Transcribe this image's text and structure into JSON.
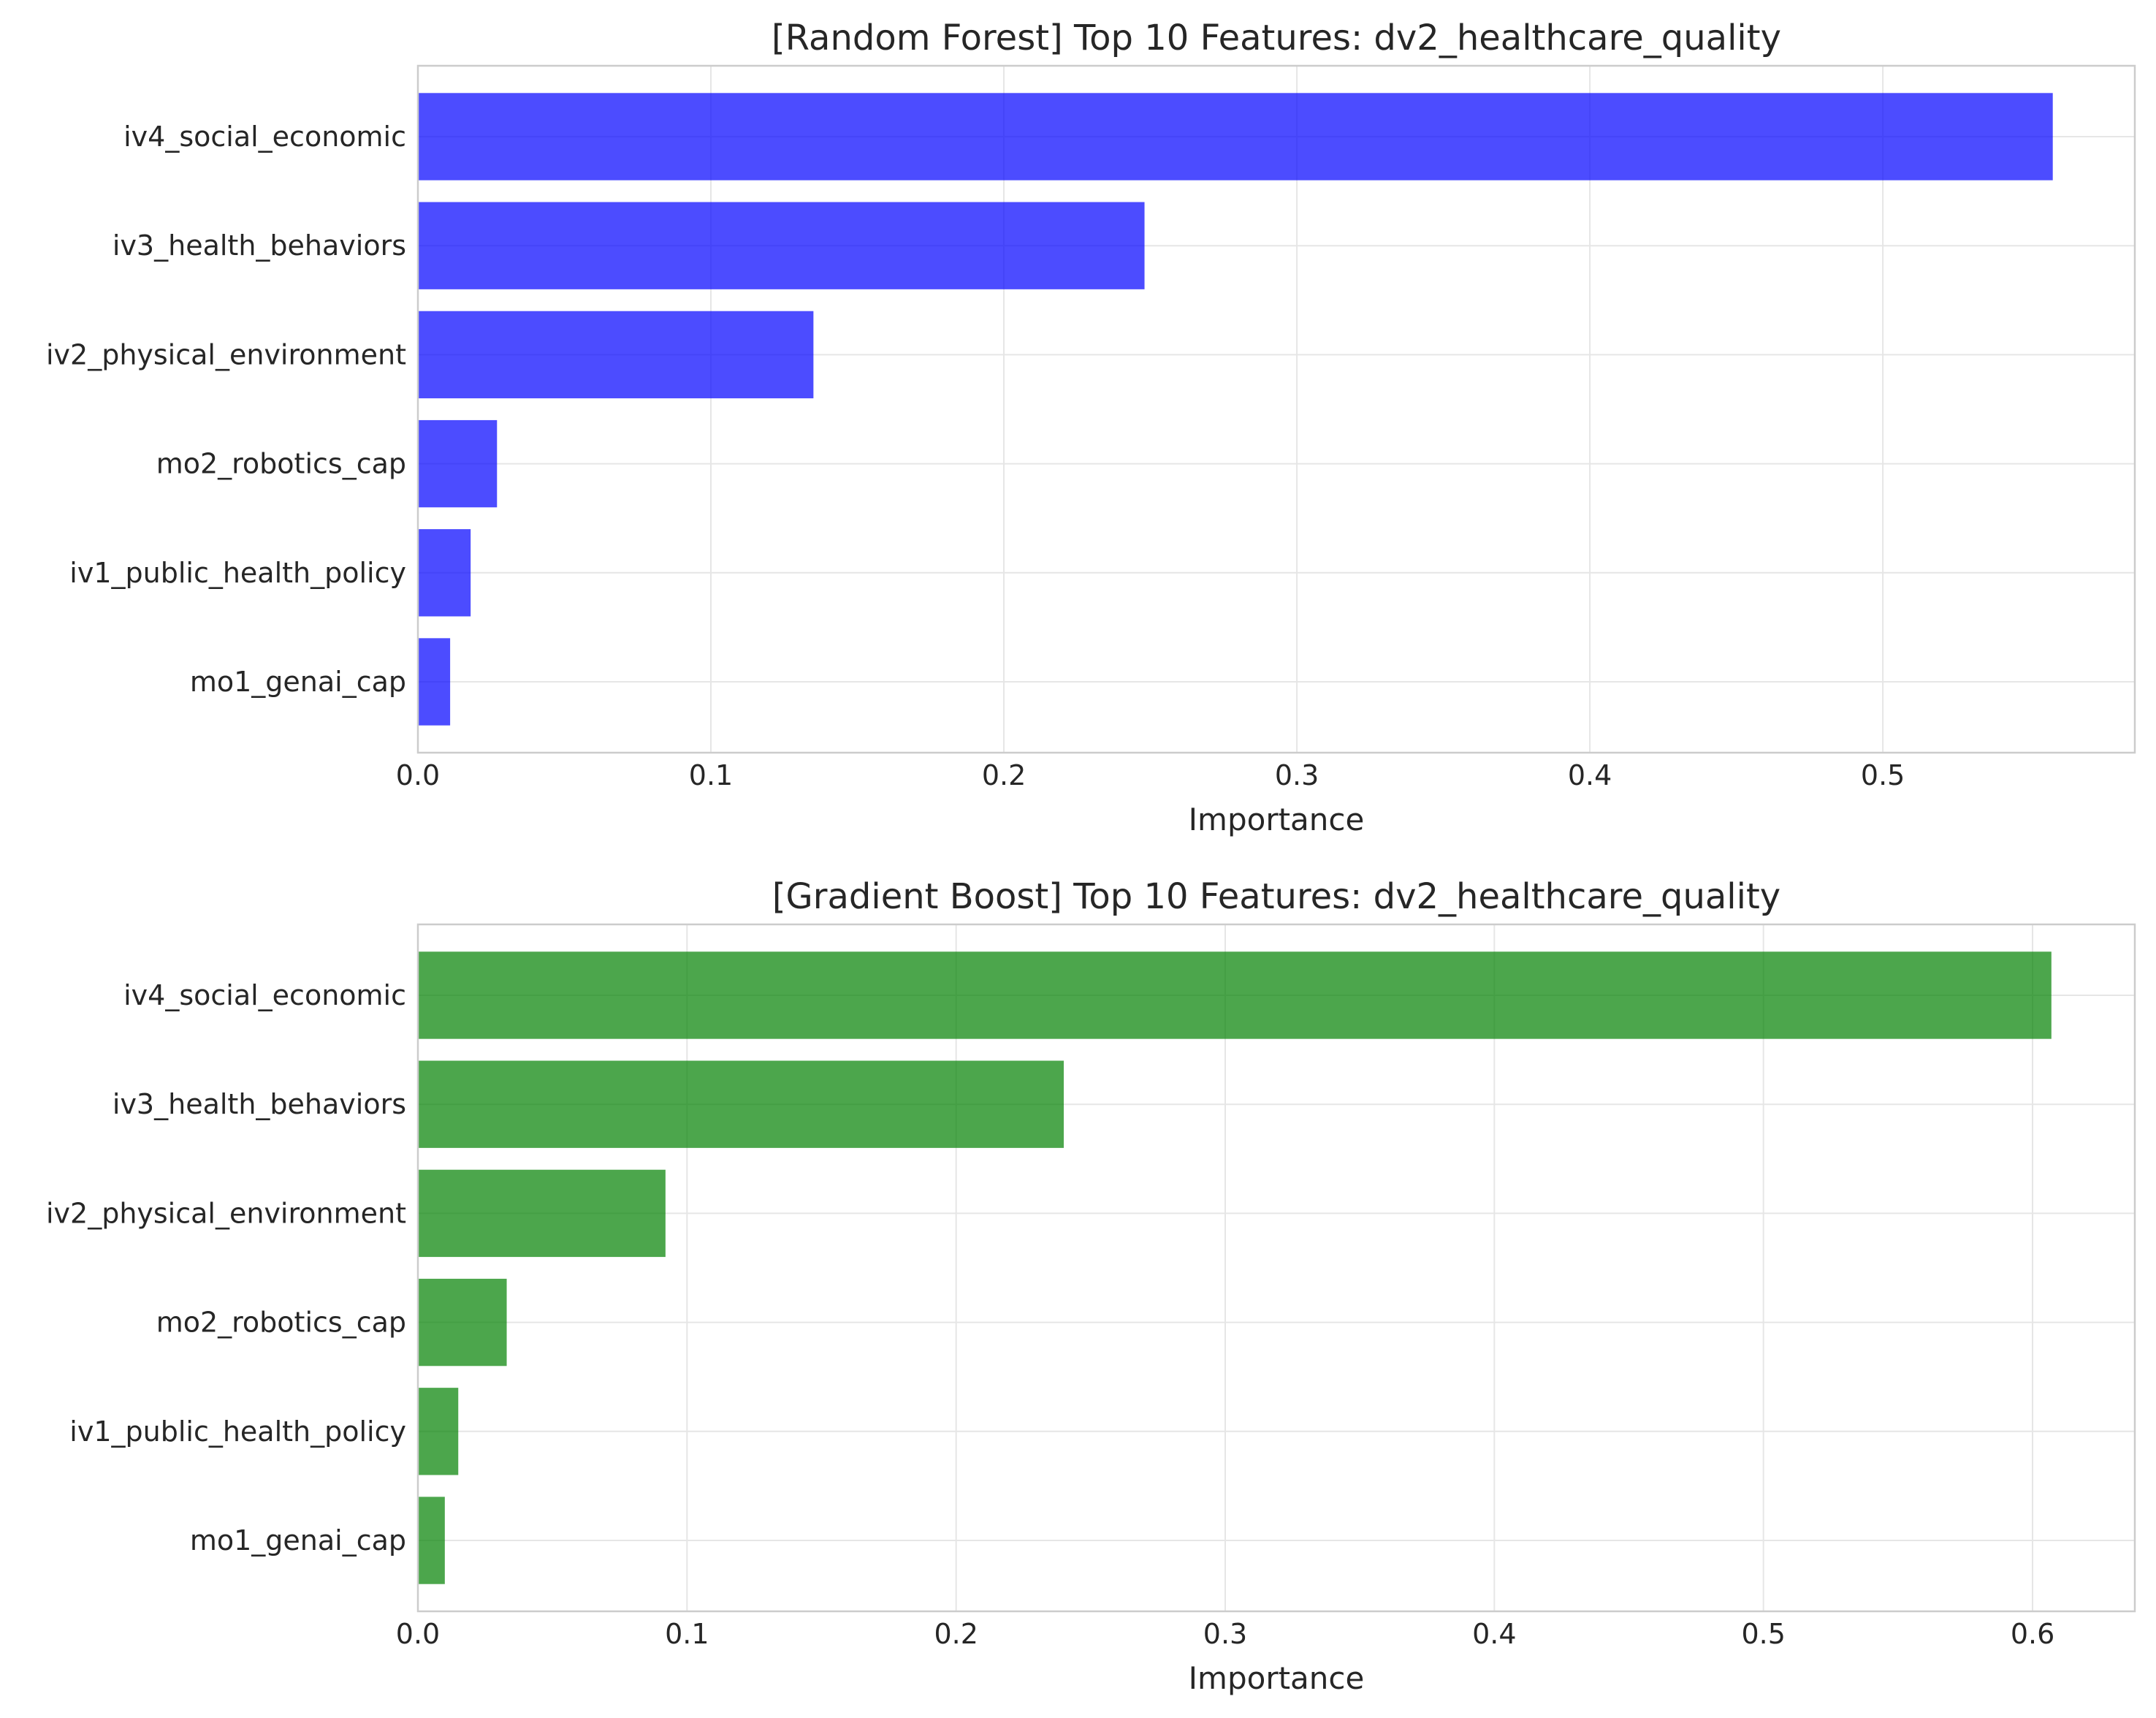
{
  "chart_data": [
    {
      "type": "bar",
      "orientation": "horizontal",
      "title": "[Random Forest] Top 10 Features: dv2_healthcare_quality",
      "xlabel": "Importance",
      "ylabel": "",
      "categories": [
        "iv4_social_economic",
        "iv3_health_behaviors",
        "iv2_physical_environment",
        "mo2_robotics_cap",
        "iv1_public_health_policy",
        "mo1_genai_cap"
      ],
      "values": [
        0.558,
        0.248,
        0.135,
        0.027,
        0.018,
        0.011
      ],
      "xlim": [
        0,
        0.586
      ],
      "xticks": [
        0,
        0.1,
        0.2,
        0.3,
        0.4,
        0.5
      ],
      "xtick_labels": [
        "0.0",
        "0.1",
        "0.2",
        "0.3",
        "0.4",
        "0.5"
      ],
      "color": "#0000ff",
      "grid": true
    },
    {
      "type": "bar",
      "orientation": "horizontal",
      "title": "[Gradient Boost] Top 10 Features: dv2_healthcare_quality",
      "xlabel": "Importance",
      "ylabel": "",
      "categories": [
        "iv4_social_economic",
        "iv3_health_behaviors",
        "iv2_physical_environment",
        "mo2_robotics_cap",
        "iv1_public_health_policy",
        "mo1_genai_cap"
      ],
      "values": [
        0.607,
        0.24,
        0.092,
        0.033,
        0.015,
        0.01
      ],
      "xlim": [
        0,
        0.638
      ],
      "xticks": [
        0,
        0.1,
        0.2,
        0.3,
        0.4,
        0.5,
        0.6
      ],
      "xtick_labels": [
        "0.0",
        "0.1",
        "0.2",
        "0.3",
        "0.4",
        "0.5",
        "0.6"
      ],
      "color": "#008000",
      "grid": true
    }
  ]
}
